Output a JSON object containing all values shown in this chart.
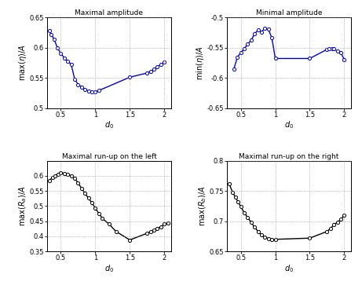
{
  "top_left": {
    "title": "Maximal amplitude",
    "xlabel": "$d_0$",
    "ylabel": "$\\mathrm{max}(\\eta)/A$",
    "ylim": [
      0.5,
      0.65
    ],
    "yticks": [
      0.5,
      0.55,
      0.6,
      0.65
    ],
    "xlim": [
      0.3,
      2.1
    ],
    "xticks": [
      0.5,
      1.0,
      1.5,
      2.0
    ],
    "x": [
      0.33,
      0.36,
      0.4,
      0.45,
      0.5,
      0.55,
      0.6,
      0.65,
      0.7,
      0.75,
      0.8,
      0.85,
      0.9,
      0.95,
      1.0,
      1.05,
      1.5,
      1.75,
      1.8,
      1.85,
      1.9,
      1.95,
      2.0
    ],
    "y": [
      0.628,
      0.622,
      0.614,
      0.6,
      0.59,
      0.583,
      0.578,
      0.572,
      0.548,
      0.539,
      0.535,
      0.531,
      0.528,
      0.527,
      0.527,
      0.529,
      0.551,
      0.558,
      0.561,
      0.564,
      0.568,
      0.572,
      0.576
    ],
    "color": "#0000cc",
    "marker": "o",
    "markersize": 3,
    "linewidth": 1.0
  },
  "top_right": {
    "title": "Minimal amplitude",
    "xlabel": "$d_0$",
    "ylabel": "$\\mathrm{min}(\\eta)/A$",
    "ylim": [
      -0.65,
      -0.5
    ],
    "yticks": [
      -0.65,
      -0.6,
      -0.55,
      -0.5
    ],
    "xlim": [
      0.3,
      2.1
    ],
    "xticks": [
      0.5,
      1.0,
      1.5,
      2.0
    ],
    "x": [
      0.4,
      0.45,
      0.5,
      0.55,
      0.6,
      0.65,
      0.7,
      0.75,
      0.8,
      0.85,
      0.9,
      0.95,
      1.0,
      1.5,
      1.75,
      1.78,
      1.82,
      1.85,
      1.9,
      1.95,
      2.0
    ],
    "y": [
      -0.585,
      -0.566,
      -0.558,
      -0.552,
      -0.544,
      -0.538,
      -0.527,
      -0.521,
      -0.524,
      -0.518,
      -0.52,
      -0.534,
      -0.568,
      -0.568,
      -0.553,
      -0.552,
      -0.552,
      -0.552,
      -0.556,
      -0.558,
      -0.57
    ],
    "color": "#0000cc",
    "marker": "o",
    "markersize": 3,
    "linewidth": 1.0
  },
  "bottom_left": {
    "title": "Maximal run-up on the left",
    "xlabel": "$d_0$",
    "ylabel": "$\\mathrm{max}(R_a)/A$",
    "ylim": [
      0.35,
      0.65
    ],
    "yticks": [
      0.35,
      0.4,
      0.45,
      0.5,
      0.55,
      0.6
    ],
    "xlim": [
      0.3,
      2.1
    ],
    "xticks": [
      0.5,
      1.0,
      1.5,
      2.0
    ],
    "x": [
      0.33,
      0.38,
      0.42,
      0.46,
      0.5,
      0.55,
      0.6,
      0.65,
      0.7,
      0.75,
      0.8,
      0.85,
      0.9,
      0.95,
      1.0,
      1.05,
      1.1,
      1.2,
      1.3,
      1.5,
      1.75,
      1.8,
      1.85,
      1.9,
      1.95,
      2.0,
      2.05
    ],
    "y": [
      0.585,
      0.594,
      0.6,
      0.606,
      0.61,
      0.608,
      0.605,
      0.6,
      0.592,
      0.576,
      0.559,
      0.542,
      0.526,
      0.511,
      0.493,
      0.476,
      0.46,
      0.44,
      0.416,
      0.388,
      0.41,
      0.415,
      0.42,
      0.425,
      0.432,
      0.44,
      0.443
    ],
    "color": "#000000",
    "marker": "o",
    "markersize": 3,
    "linewidth": 1.0
  },
  "bottom_right": {
    "title": "Maximal run-up on the right",
    "xlabel": "$d_0$",
    "ylabel": "$\\mathrm{max}(R_b)/A$",
    "ylim": [
      0.65,
      0.8
    ],
    "yticks": [
      0.65,
      0.7,
      0.75,
      0.8
    ],
    "xlim": [
      0.3,
      2.1
    ],
    "xticks": [
      0.5,
      1.0,
      1.5,
      2.0
    ],
    "x": [
      0.33,
      0.38,
      0.42,
      0.46,
      0.5,
      0.55,
      0.6,
      0.65,
      0.7,
      0.75,
      0.8,
      0.85,
      0.9,
      0.95,
      1.0,
      1.5,
      1.75,
      1.8,
      1.85,
      1.9,
      1.95,
      2.0
    ],
    "y": [
      0.762,
      0.748,
      0.74,
      0.732,
      0.724,
      0.714,
      0.706,
      0.698,
      0.69,
      0.683,
      0.677,
      0.674,
      0.671,
      0.67,
      0.67,
      0.672,
      0.683,
      0.688,
      0.694,
      0.698,
      0.703,
      0.71
    ],
    "color": "#000000",
    "marker": "o",
    "markersize": 3,
    "linewidth": 1.0
  }
}
